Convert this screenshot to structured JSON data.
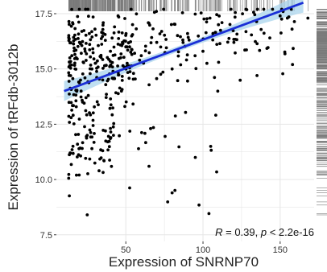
{
  "chart_data": {
    "type": "scatter",
    "xlabel": "Expression of  SNRNP70",
    "ylabel": "Expression of  tRFdb-3012b",
    "xlim": [
      5,
      172
    ],
    "ylim": [
      7.2,
      17.9
    ],
    "x_ticks": [
      50,
      100,
      150
    ],
    "y_ticks": [
      7.5,
      10.0,
      12.5,
      15.0,
      17.5
    ],
    "x_tick_labels": [
      "50",
      "100",
      "150"
    ],
    "y_tick_labels": [
      "7.5",
      "10.0",
      "12.5",
      "15.0",
      "17.5"
    ],
    "grid": true,
    "marginal_rug": "top and right",
    "annotation": {
      "r_label": "R",
      "r_text": " = 0.39, ",
      "p_label": "p",
      "p_text": " < 2.2e-16"
    },
    "fit": {
      "method": "linear regression with confidence band",
      "x": [
        10,
        165
      ],
      "y": [
        14.0,
        18.0
      ],
      "band_half_width_at_ends": 0.45,
      "band_half_width_at_center": 0.12
    },
    "colors": {
      "points": "#000000",
      "fit_line": "#1a2fd6",
      "band": "#a9d4ec",
      "grid": "#e6e6e6",
      "rug": "#7a7a7a"
    },
    "points_sample": [
      [
        15,
        15.6
      ],
      [
        20,
        16.2
      ],
      [
        22,
        13.5
      ],
      [
        25,
        12.0
      ],
      [
        28,
        15.0
      ],
      [
        30,
        16.8
      ],
      [
        35,
        14.5
      ],
      [
        40,
        15.8
      ],
      [
        45,
        17.4
      ],
      [
        50,
        16.0
      ],
      [
        55,
        14.8
      ],
      [
        60,
        15.6
      ],
      [
        70,
        16.2
      ],
      [
        80,
        15.0
      ],
      [
        90,
        16.6
      ],
      [
        100,
        15.8
      ],
      [
        110,
        17.0
      ],
      [
        120,
        16.2
      ],
      [
        135,
        14.7
      ],
      [
        150,
        17.4
      ],
      [
        158,
        15.2
      ],
      [
        168,
        17.3
      ],
      [
        18,
        10.2
      ],
      [
        25,
        8.4
      ],
      [
        35,
        11.3
      ],
      [
        42,
        12.0
      ],
      [
        65,
        10.6
      ],
      [
        80,
        9.4
      ],
      [
        95,
        11.0
      ],
      [
        105,
        11.5
      ]
    ]
  }
}
